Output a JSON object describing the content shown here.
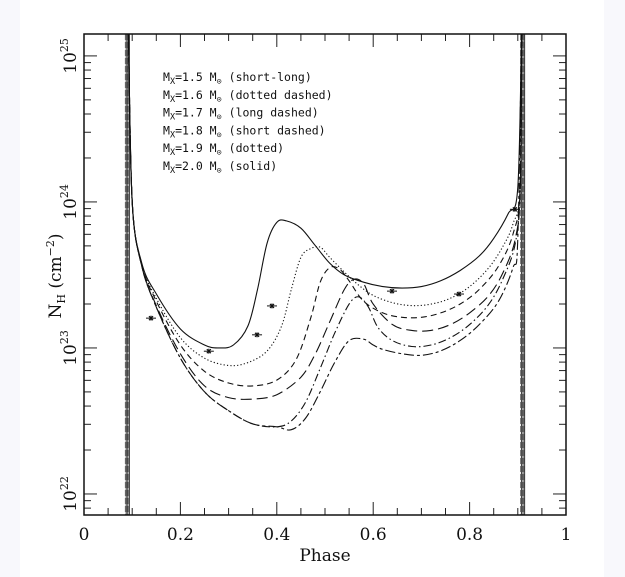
{
  "chart_data": {
    "type": "line",
    "title": "",
    "xlabel": "Phase",
    "ylabel": "N_H (cm^-2)",
    "ylabel_parts": {
      "main": "N",
      "sub": "H",
      "unit_open": "(cm",
      "unit_sup": "−2",
      "unit_close": ")"
    },
    "xlim": [
      0,
      1
    ],
    "ylim_log10": [
      21.856,
      25.15
    ],
    "yscale": "log",
    "xticks": [
      0,
      0.2,
      0.4,
      0.6,
      0.8,
      1
    ],
    "xtick_labels": [
      "0",
      "0.2",
      "0.4",
      "0.6",
      "0.8",
      "1"
    ],
    "yticks_log10": [
      22,
      23,
      24,
      25
    ],
    "ytick_labels": [
      {
        "base": "10",
        "exp": "22"
      },
      {
        "base": "10",
        "exp": "23"
      },
      {
        "base": "10",
        "exp": "24"
      },
      {
        "base": "10",
        "exp": "25"
      }
    ],
    "grid": false,
    "legend_placement": "top-left",
    "legend": [
      {
        "prefix": "M",
        "sub": "X",
        "text": "=1.5 M",
        "sun": "⊙",
        "style": "(short-long)"
      },
      {
        "prefix": "M",
        "sub": "X",
        "text": "=1.6 M",
        "sun": "⊙",
        "style": "(dotted dashed)"
      },
      {
        "prefix": "M",
        "sub": "X",
        "text": "=1.7 M",
        "sun": "⊙",
        "style": "(long dashed)"
      },
      {
        "prefix": "M",
        "sub": "X",
        "text": "=1.8 M",
        "sun": "⊙",
        "style": "(short dashed)"
      },
      {
        "prefix": "M",
        "sub": "X",
        "text": "=1.9 M",
        "sun": "⊙",
        "style": "(dotted)"
      },
      {
        "prefix": "M",
        "sub": "X",
        "text": "=2.0 M",
        "sun": "⊙",
        "style": "(solid)"
      }
    ],
    "eclipse_phases": [
      0.09,
      0.91
    ],
    "series": [
      {
        "name": "Mx=2.0 Msun (solid)",
        "dash": "solid",
        "x": [
          0.092,
          0.1,
          0.12,
          0.15,
          0.2,
          0.25,
          0.28,
          0.31,
          0.34,
          0.36,
          0.38,
          0.4,
          0.42,
          0.45,
          0.48,
          0.51,
          0.54,
          0.58,
          0.62,
          0.66,
          0.7,
          0.74,
          0.78,
          0.82,
          0.85,
          0.88,
          0.9,
          0.908
        ],
        "log10": [
          25.2,
          24.0,
          23.58,
          23.37,
          23.13,
          23.02,
          23.0,
          23.02,
          23.15,
          23.4,
          23.72,
          23.86,
          23.87,
          23.82,
          23.7,
          23.58,
          23.5,
          23.45,
          23.42,
          23.41,
          23.42,
          23.46,
          23.53,
          23.63,
          23.75,
          23.92,
          24.1,
          25.2
        ]
      },
      {
        "name": "Mx=1.9 Msun (dotted)",
        "dash": "dotted",
        "x": [
          0.092,
          0.1,
          0.12,
          0.15,
          0.2,
          0.25,
          0.3,
          0.34,
          0.38,
          0.41,
          0.43,
          0.45,
          0.47,
          0.49,
          0.51,
          0.54,
          0.57,
          0.6,
          0.64,
          0.68,
          0.72,
          0.76,
          0.8,
          0.84,
          0.87,
          0.89,
          0.905,
          0.908
        ],
        "log10": [
          25.2,
          24.0,
          23.57,
          23.34,
          23.07,
          22.93,
          22.88,
          22.9,
          22.98,
          23.15,
          23.4,
          23.62,
          23.68,
          23.69,
          23.62,
          23.52,
          23.43,
          23.36,
          23.31,
          23.29,
          23.3,
          23.34,
          23.42,
          23.55,
          23.7,
          23.85,
          24.1,
          25.2
        ]
      },
      {
        "name": "Mx=1.8 Msun (short dashed)",
        "dash": "short",
        "x": [
          0.092,
          0.1,
          0.12,
          0.15,
          0.2,
          0.25,
          0.3,
          0.35,
          0.4,
          0.44,
          0.47,
          0.49,
          0.51,
          0.53,
          0.55,
          0.58,
          0.62,
          0.66,
          0.7,
          0.74,
          0.78,
          0.82,
          0.86,
          0.89,
          0.905,
          0.908
        ],
        "log10": [
          25.2,
          24.0,
          23.57,
          23.32,
          23.02,
          22.84,
          22.76,
          22.74,
          22.78,
          22.92,
          23.2,
          23.45,
          23.55,
          23.54,
          23.46,
          23.32,
          23.24,
          23.21,
          23.21,
          23.24,
          23.3,
          23.4,
          23.56,
          23.78,
          24.1,
          25.2
        ]
      },
      {
        "name": "Mx=1.7 Msun (long dashed)",
        "dash": "long",
        "x": [
          0.092,
          0.1,
          0.12,
          0.15,
          0.2,
          0.25,
          0.3,
          0.35,
          0.4,
          0.45,
          0.48,
          0.51,
          0.54,
          0.56,
          0.58,
          0.6,
          0.64,
          0.68,
          0.72,
          0.76,
          0.8,
          0.84,
          0.87,
          0.895,
          0.905,
          0.908
        ],
        "log10": [
          25.2,
          24.0,
          23.56,
          23.29,
          22.96,
          22.74,
          22.66,
          22.65,
          22.68,
          22.8,
          22.96,
          23.18,
          23.4,
          23.47,
          23.44,
          23.3,
          23.16,
          23.12,
          23.12,
          23.16,
          23.24,
          23.36,
          23.52,
          23.75,
          24.1,
          25.2
        ]
      },
      {
        "name": "Mx=1.6 Msun (dotted dashed)",
        "dash": "dotdash",
        "x": [
          0.092,
          0.1,
          0.12,
          0.15,
          0.2,
          0.25,
          0.3,
          0.35,
          0.4,
          0.43,
          0.46,
          0.49,
          0.52,
          0.55,
          0.57,
          0.59,
          0.61,
          0.64,
          0.68,
          0.72,
          0.76,
          0.8,
          0.84,
          0.87,
          0.895,
          0.905,
          0.908
        ],
        "log10": [
          25.2,
          24.0,
          23.56,
          23.28,
          22.93,
          22.7,
          22.57,
          22.48,
          22.46,
          22.5,
          22.63,
          22.86,
          23.1,
          23.3,
          23.35,
          23.28,
          23.14,
          23.05,
          23.01,
          23.02,
          23.07,
          23.16,
          23.3,
          23.48,
          23.72,
          24.1,
          25.2
        ]
      },
      {
        "name": "Mx=1.5 Msun (short-long)",
        "dash": "shortlong",
        "x": [
          0.092,
          0.1,
          0.12,
          0.15,
          0.2,
          0.25,
          0.3,
          0.35,
          0.4,
          0.43,
          0.46,
          0.49,
          0.52,
          0.55,
          0.58,
          0.6,
          0.62,
          0.66,
          0.7,
          0.74,
          0.78,
          0.82,
          0.86,
          0.89,
          0.9,
          0.908
        ],
        "log10": [
          25.2,
          24.0,
          23.56,
          23.28,
          22.93,
          22.7,
          22.57,
          22.48,
          22.46,
          22.44,
          22.52,
          22.7,
          22.9,
          23.05,
          23.06,
          23.02,
          22.99,
          22.96,
          22.95,
          22.98,
          23.05,
          23.16,
          23.32,
          23.55,
          23.75,
          25.2
        ]
      }
    ],
    "observed_points": {
      "phase": [
        0.139,
        0.259,
        0.359,
        0.39,
        0.639,
        0.778,
        0.894
      ],
      "NH": [
        1.6e+23,
        9.5e+22,
        1.23e+23,
        1.94e+23,
        2.45e+23,
        2.34e+23,
        8.9e+23
      ]
    }
  }
}
